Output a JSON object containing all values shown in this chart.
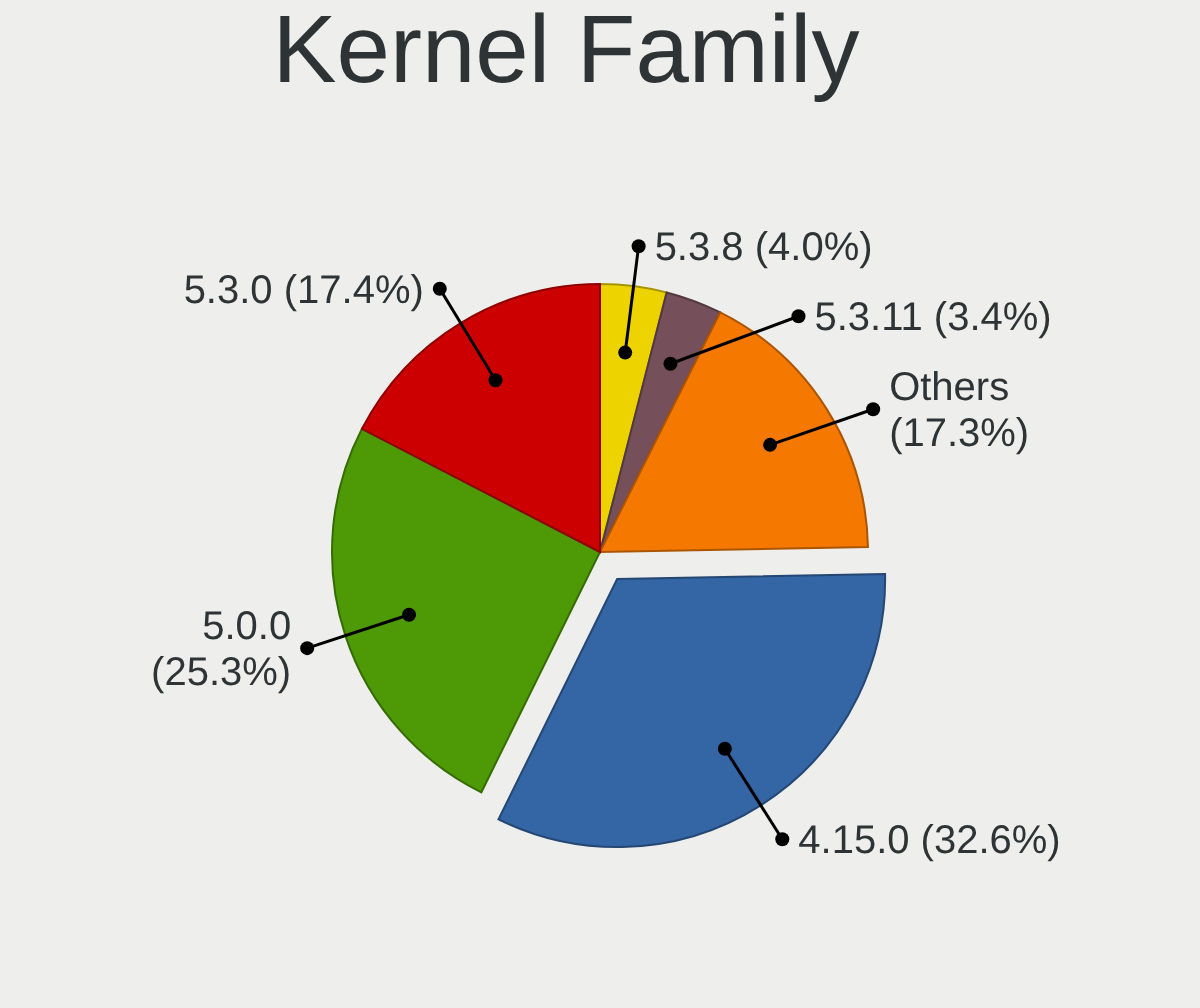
{
  "chart_data": {
    "type": "pie",
    "title": "Kernel Family",
    "categories": [
      "5.3.8",
      "5.3.11",
      "Others",
      "4.15.0",
      "5.0.0",
      "5.3.0"
    ],
    "values": [
      4.0,
      3.4,
      17.3,
      32.6,
      25.3,
      17.4
    ],
    "value_labels": [
      "(4.0%)",
      "(3.4%)",
      "(17.3%)",
      "(32.6%)",
      "(25.3%)",
      "(17.4%)"
    ],
    "colors": [
      "#edd400",
      "#75505b",
      "#f57900",
      "#3465a4",
      "#4e9a06",
      "#cc0000"
    ]
  }
}
